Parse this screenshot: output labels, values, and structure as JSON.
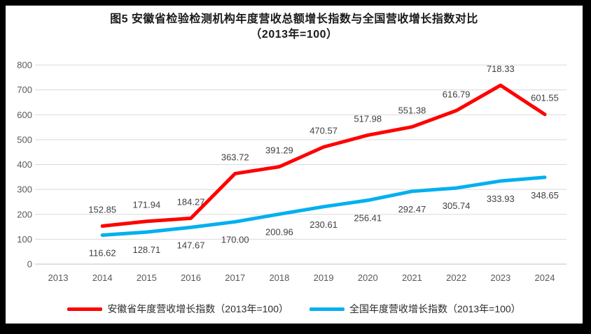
{
  "title": {
    "line1": "图5  安徽省检验检测机构年度营收总额增长指数与全国营收增长指数对比",
    "line2": "（2013年=100）"
  },
  "chart_data": {
    "type": "line",
    "title": "图5 安徽省检验检测机构年度营收总额增长指数与全国营收增长指数对比（2013年=100）",
    "categories": [
      "2013",
      "2014",
      "2015",
      "2016",
      "2017",
      "2018",
      "2019",
      "2020",
      "2021",
      "2022",
      "2023",
      "2024"
    ],
    "series": [
      {
        "name": "安徽省年度营收增长指数（2013年=100）",
        "color": "#FF0000",
        "label_position": "above",
        "values": [
          null,
          152.85,
          171.94,
          184.27,
          363.72,
          391.29,
          470.57,
          517.98,
          551.38,
          616.79,
          718.33,
          601.55
        ]
      },
      {
        "name": "全国年度营收增长指数（2013年=100）",
        "color": "#00B0F0",
        "label_position": "below",
        "values": [
          null,
          116.62,
          128.71,
          147.67,
          170.0,
          200.96,
          230.61,
          256.41,
          292.47,
          305.74,
          333.93,
          348.65
        ]
      }
    ],
    "ylim": [
      0,
      800
    ],
    "ytick_step": 100,
    "grid": true,
    "legend_position": "bottom",
    "colors": {
      "gridline": "#D9D9D9",
      "axis_line": "#BFBFBF",
      "axis_text": "#595959",
      "data_label_text": "#404040"
    }
  }
}
